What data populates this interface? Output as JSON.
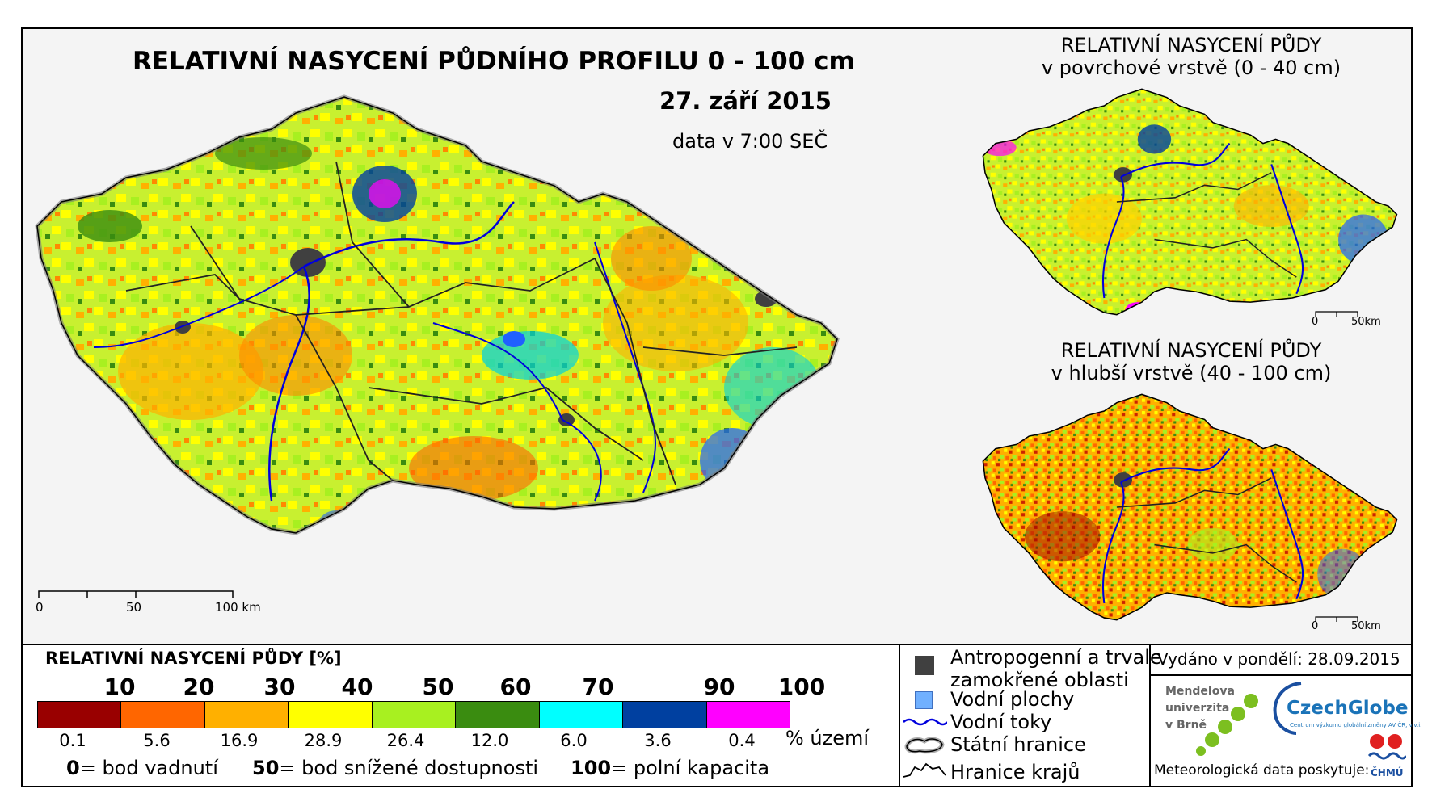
{
  "main": {
    "title": "RELATIVNÍ NASYCENÍ PŮDNÍHO PROFILU 0 - 100 cm",
    "date": "27. září 2015",
    "time": "data v 7:00 SEČ",
    "scale_labels": [
      "0",
      "50",
      "100 km"
    ]
  },
  "inset_top": {
    "title_line1": "RELATIVNÍ NASYCENÍ PŮDY",
    "title_line2": "v povrchové vrstvě (0 - 40 cm)",
    "scale_labels": [
      "0",
      "50km"
    ]
  },
  "inset_bottom": {
    "title_line1": "RELATIVNÍ NASYCENÍ PŮDY",
    "title_line2": "v hlubší vrstvě (40 - 100 cm)",
    "scale_labels": [
      "0",
      "50km"
    ]
  },
  "legend": {
    "title": "RELATIVNÍ NASYCENÍ PŮDY [%]",
    "bin_labels": [
      "10",
      "20",
      "30",
      "40",
      "50",
      "60",
      "70",
      "90",
      "100"
    ],
    "colors": [
      "#990000",
      "#ff6600",
      "#ffb000",
      "#ffff00",
      "#a8f020",
      "#3a8c10",
      "#00ffff",
      "#0040a0",
      "#ff00ff"
    ],
    "percent_territory": [
      "0.1",
      "5.6",
      "16.9",
      "28.9",
      "26.4",
      "12.0",
      "6.0",
      "3.6",
      "0.4"
    ],
    "percent_unit": "% území",
    "definitions": [
      {
        "value": "0",
        "text": "= bod vadnutí"
      },
      {
        "value": "50",
        "text": "= bod snížené dostupnosti"
      },
      {
        "value": "100",
        "text": "= polní kapacita"
      }
    ]
  },
  "symbols": {
    "wetland_line1": "Antropogenní a trvale",
    "wetland_line2": "zamokřené oblasti",
    "water_bodies": "Vodní plochy",
    "rivers": "Vodní toky",
    "state_border": "Státní hranice",
    "region_border": "Hranice krajů",
    "wetland_color": "#404040",
    "water_color": "#70b0ff",
    "river_color": "#0000dd"
  },
  "credits": {
    "issued": "Vydáno v pondělí: 28.09.2015",
    "mendel_line1": "Mendelova",
    "mendel_line2": "univerzita",
    "mendel_line3": "v Brně",
    "czechglobe": "CzechGlobe",
    "czechglobe_sub": "Centrum výzkumu globální změny AV ČR, v.v.i.",
    "meteo": "Meteorologická data poskytuje:",
    "chmu": "ČHMÚ"
  }
}
